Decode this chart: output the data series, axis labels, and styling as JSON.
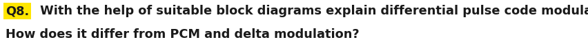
{
  "line1_prefix": "Q8.",
  "line1_suffix": " With the help of suitable block diagrams explain differential pulse code modulation.",
  "line2": "How does it differ from PCM and delta modulation?",
  "highlight_color": "#FFE600",
  "text_color": "#1a1a1a",
  "background_color": "#ffffff",
  "font_size": 12.8,
  "fig_width": 8.52,
  "fig_height": 0.74,
  "dpi": 100
}
